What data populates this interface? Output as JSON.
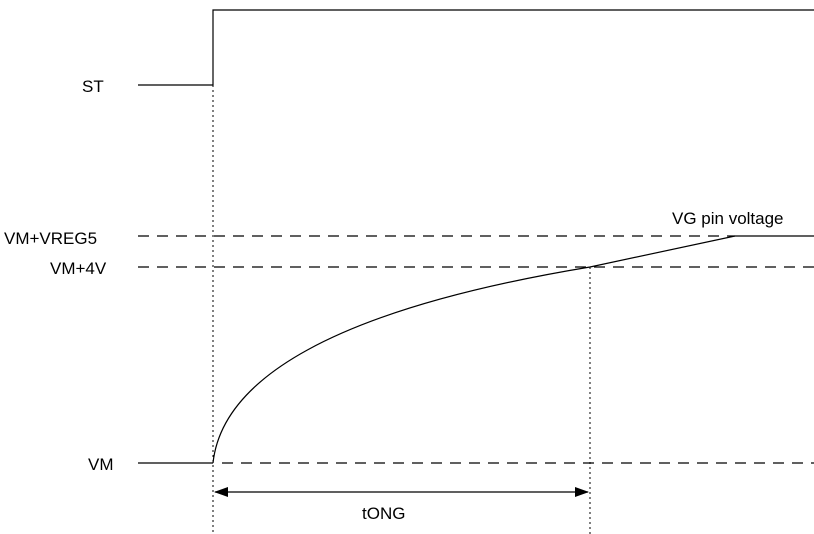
{
  "diagram": {
    "signals": {
      "st": "ST",
      "vm": "VM",
      "vm_4v": "VM+4V",
      "vm_vreg5": "VM+VREG5"
    },
    "curve_label": "VG pin voltage",
    "interval_label": "tONG"
  }
}
